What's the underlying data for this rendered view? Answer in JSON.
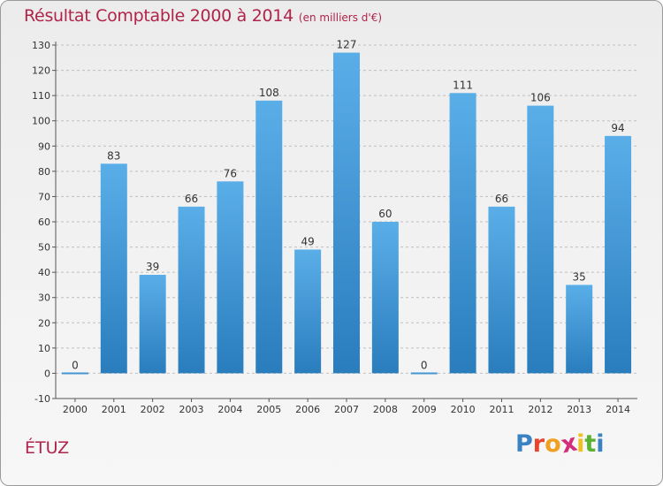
{
  "header": {
    "title": "Résultat Comptable 2000 à 2014",
    "subtitle": "(en milliers d'€)"
  },
  "footer": {
    "place": "ÉTUZ",
    "logo": {
      "letters": [
        "P",
        "r",
        "o",
        "x",
        "i",
        "t",
        "i"
      ],
      "colors": [
        "#3b82c4",
        "#e8452c",
        "#f0a020",
        "#d42d7a",
        "#f0c020",
        "#5bb131",
        "#3b82c4"
      ]
    }
  },
  "colors": {
    "bar_light": "#5aaee8",
    "bar_dark": "#2a7dbd",
    "grid": "#bfbfbf",
    "title": "#b0234a"
  },
  "chart_data": {
    "type": "bar",
    "title": "Résultat Comptable 2000 à 2014",
    "subtitle": "(en milliers d'€)",
    "categories": [
      "2000",
      "2001",
      "2002",
      "2003",
      "2004",
      "2005",
      "2006",
      "2007",
      "2008",
      "2009",
      "2010",
      "2011",
      "2012",
      "2013",
      "2014"
    ],
    "values": [
      0,
      83,
      39,
      66,
      76,
      108,
      49,
      127,
      60,
      0,
      111,
      66,
      106,
      35,
      94
    ],
    "ylim": [
      -10,
      130
    ],
    "yticks": [
      -10,
      0,
      10,
      20,
      30,
      40,
      50,
      60,
      70,
      80,
      90,
      100,
      110,
      120,
      130
    ],
    "grid": "horizontal dashed",
    "legend": "none"
  }
}
